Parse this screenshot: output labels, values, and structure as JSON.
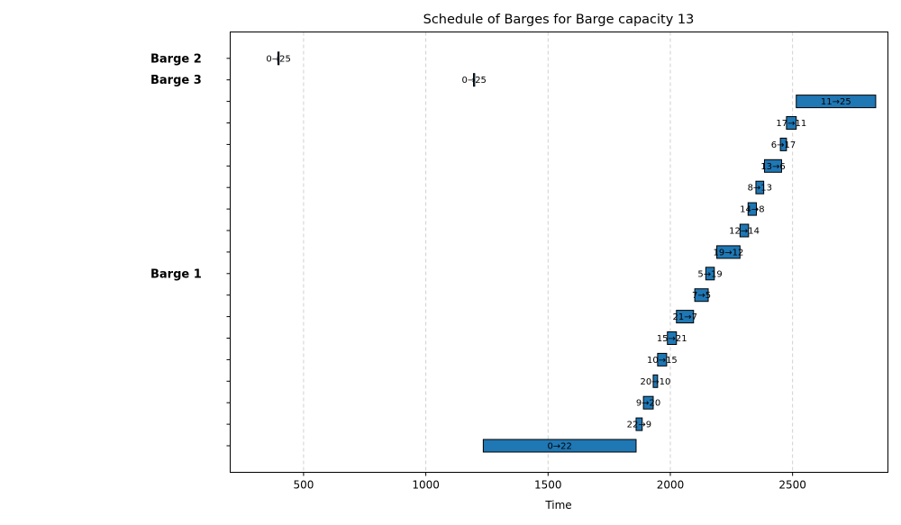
{
  "chart_data": {
    "type": "gantt",
    "title": "Schedule of Barges for Barge capacity 13",
    "xlabel": "Time",
    "ylabel": "",
    "xlim": [
      200,
      2890
    ],
    "xticks": [
      500,
      1000,
      1500,
      2000,
      2500
    ],
    "grid": true,
    "bar_color": "#1f77b4",
    "row_count": 19,
    "row_labels": [
      {
        "row": 17,
        "label": "Barge 3"
      },
      {
        "row": 18,
        "label": "Barge 2"
      },
      {
        "row": 8,
        "label": "Barge 1"
      }
    ],
    "tasks": [
      {
        "barge": "Barge 3",
        "row": 17,
        "label": "0→25",
        "start": 1195,
        "end": 1200
      },
      {
        "barge": "Barge 2",
        "row": 18,
        "label": "0→25",
        "start": 395,
        "end": 400
      },
      {
        "barge": "Barge 1",
        "row": 0,
        "label": "0→22",
        "start": 1235,
        "end": 1860
      },
      {
        "barge": "Barge 1",
        "row": 1,
        "label": "22→9",
        "start": 1860,
        "end": 1885
      },
      {
        "barge": "Barge 1",
        "row": 2,
        "label": "9→20",
        "start": 1890,
        "end": 1930
      },
      {
        "barge": "Barge 1",
        "row": 3,
        "label": "20→10",
        "start": 1930,
        "end": 1948
      },
      {
        "barge": "Barge 1",
        "row": 4,
        "label": "10→15",
        "start": 1948,
        "end": 1985
      },
      {
        "barge": "Barge 1",
        "row": 5,
        "label": "15→21",
        "start": 1988,
        "end": 2025
      },
      {
        "barge": "Barge 1",
        "row": 6,
        "label": "21→7",
        "start": 2025,
        "end": 2095
      },
      {
        "barge": "Barge 1",
        "row": 7,
        "label": "7→5",
        "start": 2100,
        "end": 2155
      },
      {
        "barge": "Barge 1",
        "row": 8,
        "label": "5→19",
        "start": 2145,
        "end": 2180
      },
      {
        "barge": "Barge 1",
        "row": 9,
        "label": "19→12",
        "start": 2190,
        "end": 2285
      },
      {
        "barge": "Barge 1",
        "row": 10,
        "label": "12→14",
        "start": 2285,
        "end": 2320
      },
      {
        "barge": "Barge 1",
        "row": 11,
        "label": "14→8",
        "start": 2318,
        "end": 2352
      },
      {
        "barge": "Barge 1",
        "row": 12,
        "label": "8→13",
        "start": 2350,
        "end": 2382
      },
      {
        "barge": "Barge 1",
        "row": 13,
        "label": "13→6",
        "start": 2385,
        "end": 2455
      },
      {
        "barge": "Barge 1",
        "row": 14,
        "label": "6→17",
        "start": 2450,
        "end": 2475
      },
      {
        "barge": "Barge 1",
        "row": 15,
        "label": "17→11",
        "start": 2475,
        "end": 2515
      },
      {
        "barge": "Barge 1",
        "row": 16,
        "label": "11→25",
        "start": 2515,
        "end": 2840
      }
    ]
  }
}
